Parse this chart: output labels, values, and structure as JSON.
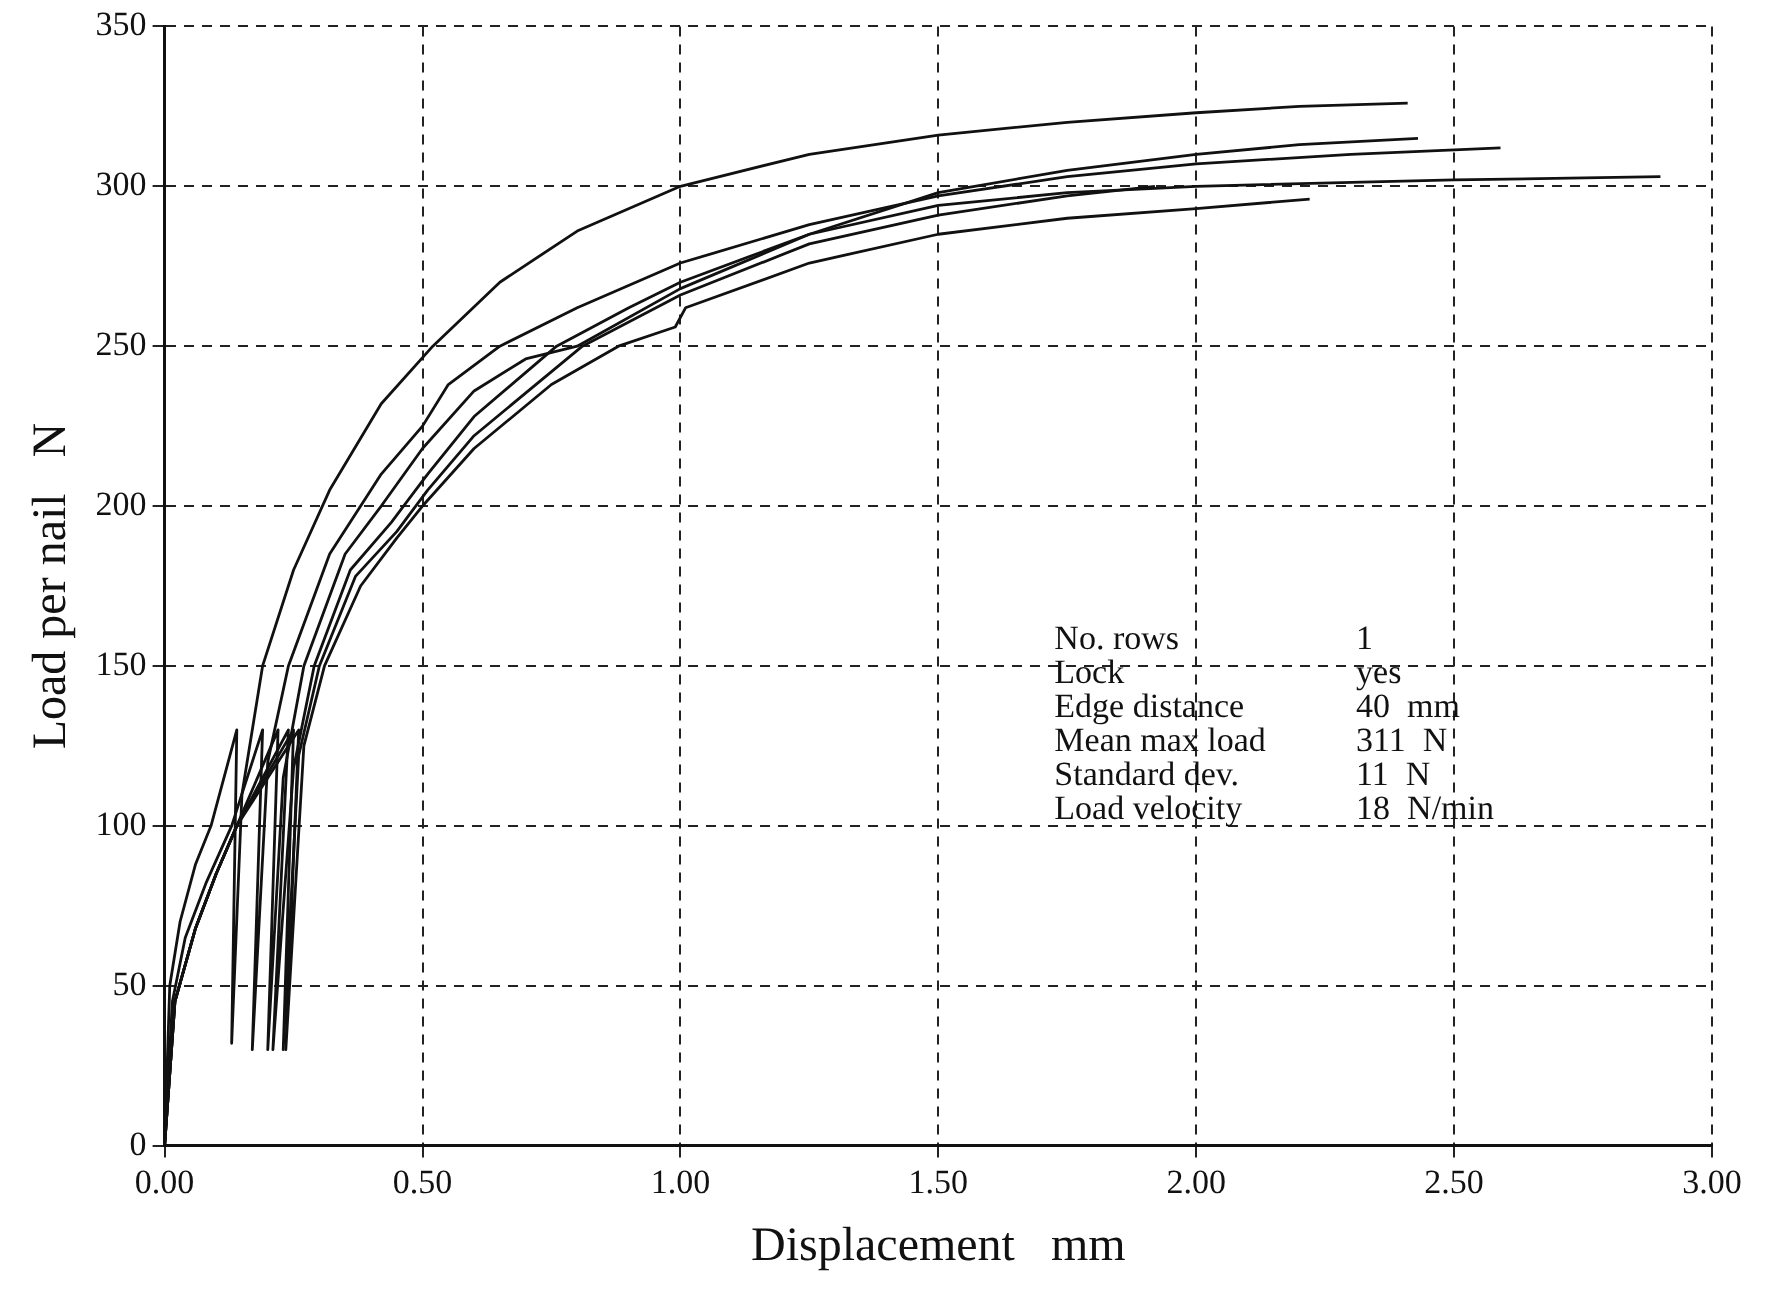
{
  "chart_data": {
    "type": "line",
    "xlabel": "Displacement   mm",
    "ylabel": "Load per nail   N",
    "xlim": [
      0,
      3
    ],
    "ylim": [
      0,
      350
    ],
    "xticks": [
      {
        "value": 0,
        "label": "0.00"
      },
      {
        "value": 0.5,
        "label": "0.50"
      },
      {
        "value": 1,
        "label": "1.00"
      },
      {
        "value": 1.5,
        "label": "1.50"
      },
      {
        "value": 2,
        "label": "2.00"
      },
      {
        "value": 2.5,
        "label": "2.50"
      },
      {
        "value": 3,
        "label": "3.00"
      }
    ],
    "yticks": [
      0,
      50,
      100,
      150,
      200,
      250,
      300,
      350
    ],
    "grid": true,
    "legend": false,
    "marker": "none",
    "line_style": "solid",
    "series": [
      {
        "color": "#111111",
        "x": [
          0,
          0.01,
          0.03,
          0.06,
          0.09,
          0.14,
          0.13,
          0.15,
          0.19,
          0.25,
          0.32,
          0.42,
          0.52,
          0.65,
          0.8,
          1.0,
          1.25,
          1.5,
          1.75,
          2.0,
          2.2,
          2.41
        ],
        "values": [
          0,
          50,
          70,
          88,
          100,
          130,
          32,
          110,
          150,
          180,
          205,
          232,
          250,
          270,
          286,
          300,
          310,
          316,
          320,
          323,
          325,
          326
        ]
      },
      {
        "color": "#111111",
        "x": [
          0,
          0.015,
          0.04,
          0.08,
          0.13,
          0.19,
          0.17,
          0.2,
          0.24,
          0.32,
          0.42,
          0.5,
          0.55,
          0.65,
          0.8,
          1.0,
          1.25,
          1.5,
          1.75,
          2.0,
          2.3,
          2.59
        ],
        "values": [
          0,
          45,
          65,
          82,
          100,
          130,
          30,
          120,
          150,
          185,
          210,
          225,
          238,
          250,
          262,
          276,
          288,
          297,
          303,
          307,
          310,
          312
        ]
      },
      {
        "color": "#111111",
        "x": [
          0,
          0.02,
          0.06,
          0.1,
          0.14,
          0.22,
          0.2,
          0.23,
          0.27,
          0.35,
          0.42,
          0.5,
          0.6,
          0.7,
          0.8,
          1.0,
          1.25,
          1.5,
          1.75,
          2.0,
          2.2,
          2.43
        ],
        "values": [
          0,
          45,
          68,
          85,
          100,
          130,
          30,
          115,
          150,
          185,
          200,
          218,
          236,
          246,
          250,
          268,
          285,
          298,
          305,
          310,
          313,
          315
        ]
      },
      {
        "color": "#111111",
        "x": [
          0,
          0.02,
          0.06,
          0.1,
          0.14,
          0.24,
          0.21,
          0.25,
          0.29,
          0.36,
          0.44,
          0.51,
          0.6,
          0.76,
          0.9,
          1.0,
          1.25,
          1.5,
          1.75,
          2.0,
          2.5,
          2.9
        ],
        "values": [
          0,
          45,
          68,
          85,
          100,
          130,
          30,
          118,
          150,
          180,
          195,
          210,
          228,
          250,
          262,
          270,
          285,
          294,
          298,
          300,
          302,
          303
        ]
      },
      {
        "color": "#111111",
        "x": [
          0,
          0.02,
          0.06,
          0.1,
          0.14,
          0.25,
          0.23,
          0.26,
          0.3,
          0.37,
          0.45,
          0.51,
          0.6,
          0.81,
          1.0,
          1.25,
          1.5,
          1.75,
          1.92
        ],
        "values": [
          0,
          45,
          68,
          85,
          100,
          130,
          30,
          122,
          150,
          178,
          192,
          205,
          222,
          250,
          266,
          282,
          291,
          297,
          300
        ]
      },
      {
        "color": "#111111",
        "x": [
          0,
          0.02,
          0.06,
          0.1,
          0.14,
          0.26,
          0.235,
          0.27,
          0.31,
          0.38,
          0.45,
          0.5,
          0.6,
          0.75,
          0.88,
          0.99,
          1.01,
          1.25,
          1.5,
          1.75,
          2.0,
          2.22
        ],
        "values": [
          0,
          45,
          68,
          85,
          100,
          130,
          30,
          125,
          150,
          175,
          190,
          200,
          218,
          238,
          250,
          256,
          262,
          276,
          285,
          290,
          293,
          296
        ]
      }
    ],
    "annotations": [
      "No. rows",
      "1",
      "Lock",
      "yes",
      "Edge distance",
      "40  mm",
      "Mean max load",
      "311  N",
      "Standard dev.",
      "11  N",
      "Load velocity",
      "18  N/min"
    ]
  }
}
